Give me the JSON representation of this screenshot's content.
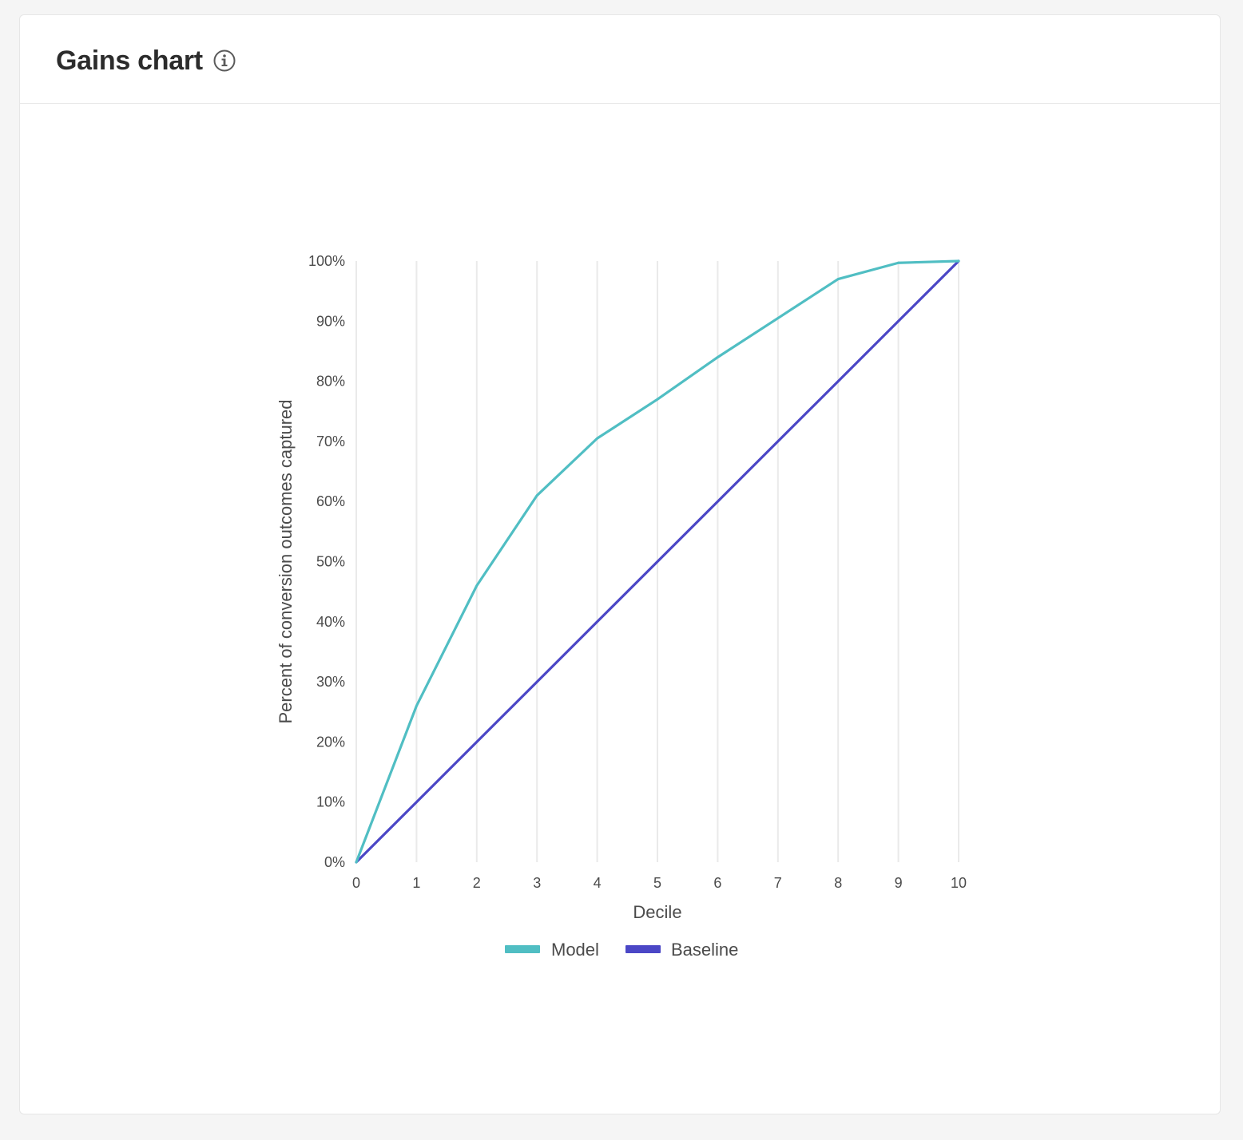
{
  "card": {
    "title": "Gains chart",
    "info_icon": "info-icon"
  },
  "colors": {
    "model": "#50bec3",
    "baseline": "#4b47c6",
    "grid": "#eaeaea",
    "text": "#4b4b4b"
  },
  "chart_data": {
    "type": "line",
    "title": "",
    "xlabel": "Decile",
    "ylabel": "Percent of conversion outcomes captured",
    "x": [
      0,
      1,
      2,
      3,
      4,
      5,
      6,
      7,
      8,
      9,
      10
    ],
    "x_ticks": [
      "0",
      "1",
      "2",
      "3",
      "4",
      "5",
      "6",
      "7",
      "8",
      "9",
      "10"
    ],
    "y_ticks": [
      "0%",
      "10%",
      "20%",
      "30%",
      "40%",
      "50%",
      "60%",
      "70%",
      "80%",
      "90%",
      "100%"
    ],
    "xlim": [
      0,
      10
    ],
    "ylim": [
      0,
      100
    ],
    "grid": "vertical",
    "legend_position": "bottom",
    "series": [
      {
        "name": "Model",
        "values": [
          0,
          26,
          46,
          61,
          70.5,
          77,
          84,
          90.5,
          97,
          99.7,
          100
        ]
      },
      {
        "name": "Baseline",
        "values": [
          0,
          10,
          20,
          30,
          40,
          50,
          60,
          70,
          80,
          90,
          100
        ]
      }
    ]
  }
}
